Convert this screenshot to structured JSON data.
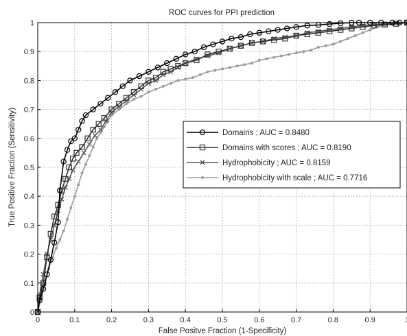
{
  "chart_data": {
    "type": "line",
    "title": "ROC curves for PPI prediction",
    "xlabel": "False Positve Fraction (1-Specificity)",
    "ylabel": "True Positive Fraction (Sensitivity)",
    "xlim": [
      0,
      1
    ],
    "ylim": [
      0,
      1
    ],
    "xticks": [
      "0",
      "0.1",
      "0.2",
      "0.3",
      "0.4",
      "0.5",
      "0.6",
      "0.7",
      "0.8",
      "0.9",
      "1"
    ],
    "yticks": [
      "0",
      "0.1",
      "0.2",
      "0.3",
      "0.4",
      "0.5",
      "0.6",
      "0.7",
      "0.8",
      "0.9",
      "1"
    ],
    "grid": true,
    "legend_position": "right",
    "series": [
      {
        "name": "Domains ; AUC = 0.8480",
        "marker": "circle",
        "color": "#000000",
        "x": [
          0,
          0.005,
          0.015,
          0.025,
          0.035,
          0.045,
          0.055,
          0.06,
          0.07,
          0.08,
          0.09,
          0.1,
          0.11,
          0.12,
          0.13,
          0.15,
          0.17,
          0.19,
          0.21,
          0.23,
          0.25,
          0.275,
          0.3,
          0.325,
          0.35,
          0.375,
          0.4,
          0.425,
          0.45,
          0.475,
          0.5,
          0.525,
          0.55,
          0.575,
          0.6,
          0.625,
          0.65,
          0.675,
          0.7,
          0.73,
          0.76,
          0.79,
          0.82,
          0.85,
          0.87,
          0.9,
          0.93,
          0.96,
          0.98,
          1.0
        ],
        "y": [
          0,
          0.04,
          0.08,
          0.13,
          0.18,
          0.24,
          0.31,
          0.42,
          0.52,
          0.56,
          0.59,
          0.6,
          0.63,
          0.66,
          0.68,
          0.7,
          0.72,
          0.74,
          0.76,
          0.78,
          0.8,
          0.815,
          0.83,
          0.845,
          0.86,
          0.875,
          0.89,
          0.9,
          0.915,
          0.925,
          0.935,
          0.945,
          0.95,
          0.96,
          0.965,
          0.97,
          0.975,
          0.98,
          0.985,
          0.99,
          0.992,
          0.995,
          0.998,
          1.0,
          1.0,
          1.0,
          1.0,
          1.0,
          1.0,
          1.0
        ]
      },
      {
        "name": "Domains with scores ; AUC = 0.8190",
        "marker": "square",
        "color": "#333333",
        "x": [
          0,
          0.005,
          0.015,
          0.025,
          0.035,
          0.045,
          0.055,
          0.065,
          0.075,
          0.085,
          0.095,
          0.105,
          0.12,
          0.135,
          0.15,
          0.165,
          0.18,
          0.2,
          0.22,
          0.24,
          0.26,
          0.28,
          0.3,
          0.32,
          0.34,
          0.36,
          0.38,
          0.4,
          0.43,
          0.46,
          0.49,
          0.52,
          0.55,
          0.58,
          0.61,
          0.64,
          0.67,
          0.7,
          0.73,
          0.76,
          0.79,
          0.82,
          0.85,
          0.88,
          0.91,
          0.94,
          0.97,
          1.0
        ],
        "y": [
          0,
          0.05,
          0.1,
          0.19,
          0.27,
          0.33,
          0.37,
          0.42,
          0.46,
          0.5,
          0.53,
          0.55,
          0.57,
          0.6,
          0.63,
          0.65,
          0.67,
          0.7,
          0.72,
          0.74,
          0.76,
          0.78,
          0.8,
          0.81,
          0.83,
          0.84,
          0.85,
          0.86,
          0.87,
          0.89,
          0.9,
          0.91,
          0.92,
          0.93,
          0.935,
          0.94,
          0.945,
          0.955,
          0.96,
          0.965,
          0.97,
          0.975,
          0.98,
          0.985,
          0.99,
          0.993,
          0.996,
          1.0
        ]
      },
      {
        "name": "Hydrophobicity ; AUC = 0.8159",
        "marker": "x",
        "color": "#555555",
        "x": [
          0,
          0.005,
          0.015,
          0.025,
          0.035,
          0.045,
          0.055,
          0.065,
          0.075,
          0.085,
          0.095,
          0.11,
          0.125,
          0.14,
          0.155,
          0.17,
          0.185,
          0.2,
          0.22,
          0.24,
          0.26,
          0.28,
          0.3,
          0.32,
          0.34,
          0.36,
          0.38,
          0.4,
          0.43,
          0.46,
          0.49,
          0.52,
          0.55,
          0.58,
          0.61,
          0.64,
          0.67,
          0.7,
          0.73,
          0.76,
          0.79,
          0.82,
          0.85,
          0.88,
          0.91,
          0.94,
          0.97,
          1.0
        ],
        "y": [
          0,
          0.06,
          0.13,
          0.2,
          0.25,
          0.3,
          0.35,
          0.39,
          0.43,
          0.46,
          0.49,
          0.52,
          0.55,
          0.58,
          0.61,
          0.63,
          0.66,
          0.69,
          0.71,
          0.73,
          0.75,
          0.77,
          0.79,
          0.8,
          0.82,
          0.83,
          0.845,
          0.86,
          0.875,
          0.885,
          0.895,
          0.91,
          0.92,
          0.93,
          0.935,
          0.945,
          0.95,
          0.955,
          0.965,
          0.97,
          0.975,
          0.98,
          0.985,
          0.99,
          0.993,
          0.996,
          0.998,
          1.0
        ]
      },
      {
        "name": "Hydrophobicity with scale ; AUC = 0.7716",
        "marker": "dot",
        "color": "#9a9a9a",
        "x": [
          0,
          0.01,
          0.02,
          0.03,
          0.04,
          0.05,
          0.06,
          0.07,
          0.08,
          0.09,
          0.1,
          0.11,
          0.12,
          0.13,
          0.14,
          0.15,
          0.16,
          0.17,
          0.18,
          0.19,
          0.2,
          0.22,
          0.24,
          0.26,
          0.28,
          0.3,
          0.32,
          0.34,
          0.36,
          0.38,
          0.4,
          0.42,
          0.44,
          0.46,
          0.48,
          0.5,
          0.52,
          0.54,
          0.56,
          0.58,
          0.6,
          0.62,
          0.64,
          0.66,
          0.68,
          0.7,
          0.72,
          0.74,
          0.76,
          0.78,
          0.8,
          0.82,
          0.84,
          0.86,
          0.88,
          0.9,
          0.92,
          0.94,
          0.96,
          0.98,
          1.0
        ],
        "y": [
          0,
          0.05,
          0.1,
          0.15,
          0.19,
          0.22,
          0.25,
          0.28,
          0.32,
          0.36,
          0.4,
          0.44,
          0.48,
          0.51,
          0.54,
          0.57,
          0.6,
          0.62,
          0.64,
          0.66,
          0.68,
          0.7,
          0.72,
          0.735,
          0.745,
          0.76,
          0.77,
          0.78,
          0.79,
          0.8,
          0.805,
          0.81,
          0.82,
          0.83,
          0.835,
          0.84,
          0.845,
          0.85,
          0.855,
          0.86,
          0.87,
          0.875,
          0.88,
          0.885,
          0.89,
          0.895,
          0.9,
          0.905,
          0.915,
          0.92,
          0.925,
          0.935,
          0.945,
          0.955,
          0.965,
          0.975,
          0.985,
          0.99,
          0.995,
          0.998,
          1.0
        ]
      }
    ]
  }
}
